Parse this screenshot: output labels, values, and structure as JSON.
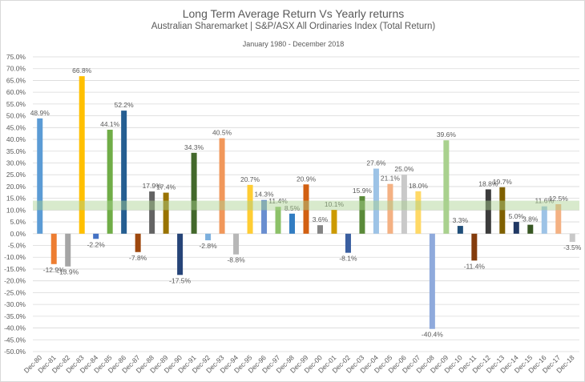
{
  "chart_data": {
    "type": "bar",
    "title": "Long Term Average Return Vs Yearly returns",
    "subtitle": "Australian Sharemarket  | S&P/ASX All  Ordinaries Index (Total Return)",
    "period": "January 1980 - December  2018",
    "xlabel": "",
    "ylabel": "",
    "ylim": [
      -50,
      75
    ],
    "ytick_step": 5,
    "grid": true,
    "legend": "none",
    "categories": [
      "Dec-80",
      "Dec-81",
      "Dec-82",
      "Dec-83",
      "Dec-84",
      "Dec-85",
      "Dec-86",
      "Dec-87",
      "Dec-88",
      "Dec-89",
      "Dec-90",
      "Dec-91",
      "Dec-92",
      "Dec-93",
      "Dec-94",
      "Dec-95",
      "Dec-96",
      "Dec-97",
      "Dec-98",
      "Dec-99",
      "Dec-00",
      "Dec-01",
      "Dec-02",
      "Dec-03",
      "Dec-04",
      "Dec-05",
      "Dec-06",
      "Dec-07",
      "Dec-08",
      "Dec-09",
      "Dec-10",
      "Dec-11",
      "Dec-12",
      "Dec-13",
      "Dec-14",
      "Dec-15",
      "Dec-16",
      "Dec-17",
      "Dec-18"
    ],
    "values": [
      48.9,
      -12.9,
      -13.9,
      66.8,
      -2.2,
      44.1,
      52.2,
      -7.8,
      17.9,
      17.4,
      -17.5,
      34.3,
      -2.8,
      40.5,
      -8.8,
      20.7,
      14.3,
      11.4,
      8.5,
      20.9,
      3.6,
      10.1,
      -8.1,
      15.9,
      27.6,
      21.1,
      25.0,
      18.0,
      -40.4,
      39.6,
      3.3,
      -11.4,
      18.8,
      19.7,
      5.0,
      3.8,
      11.6,
      12.5,
      -3.5
    ],
    "colors": [
      "#5B9BD5",
      "#ED7D31",
      "#A5A5A5",
      "#FFC000",
      "#4472C4",
      "#70AD47",
      "#255E91",
      "#9E480E",
      "#636363",
      "#997300",
      "#264478",
      "#43682B",
      "#7CAFDD",
      "#F1975A",
      "#B7B7B7",
      "#FFCD33",
      "#698ED0",
      "#8CC168",
      "#327DC2",
      "#D26012",
      "#848484",
      "#CC9A00",
      "#3A5FA0",
      "#5A8A39",
      "#9DC3E6",
      "#F4B183",
      "#C9C9C9",
      "#FFD966",
      "#8FAADC",
      "#A9D18E",
      "#1F4E79",
      "#843C0C",
      "#3B3B3B",
      "#7F6000",
      "#203864",
      "#385723",
      "#9DC3E6",
      "#F4B183",
      "#C9C9C9"
    ],
    "band": {
      "range": [
        10,
        14
      ],
      "color": "#A9D18E"
    }
  }
}
